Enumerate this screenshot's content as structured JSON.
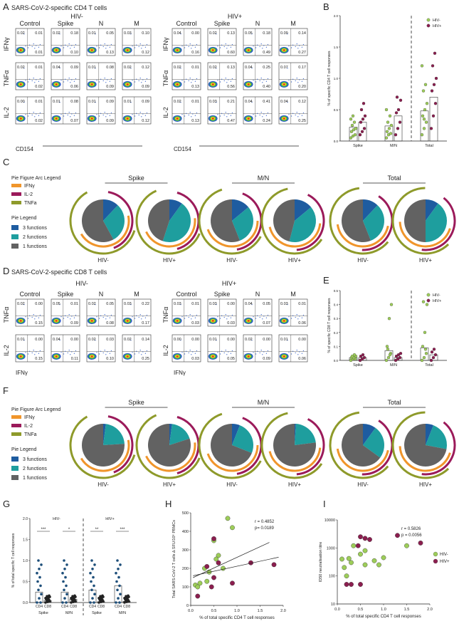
{
  "panel_letters": [
    "A",
    "B",
    "C",
    "D",
    "E",
    "F",
    "G",
    "H",
    "I"
  ],
  "sectionA": {
    "title": "SARS-CoV-2-specific CD4 T cells",
    "group_neg": "HIV-",
    "group_pos": "HIV+",
    "columns": [
      "Control",
      "Spike",
      "N",
      "M"
    ],
    "row_labels": [
      "IFNγ",
      "TNFα",
      "IL-2"
    ],
    "x_label": "CD154",
    "quadrants_neg": [
      [
        [
          "0.02",
          "0.01",
          "0.01"
        ],
        [
          "0.02",
          "0.18",
          "0.10"
        ],
        [
          "0.01",
          "0.05",
          "0.13"
        ],
        [
          "0.03",
          "0.10",
          "0.12"
        ]
      ],
      [
        [
          "0.02",
          "0.01",
          "0.02"
        ],
        [
          "0.04",
          "0.09",
          "0.06"
        ],
        [
          "0.01",
          "0.08",
          "0.09"
        ],
        [
          "0.02",
          "0.12",
          "0.09"
        ]
      ],
      [
        [
          "0.00",
          "0.01",
          "0.02"
        ],
        [
          "0.01",
          "0.08",
          "0.07"
        ],
        [
          "0.01",
          "0.09",
          "0.09"
        ],
        [
          "0.01",
          "0.09",
          "0.12"
        ]
      ]
    ],
    "quadrants_pos": [
      [
        [
          "0.04",
          "0.00",
          "0.16"
        ],
        [
          "0.02",
          "0.13",
          "0.60"
        ],
        [
          "0.05",
          "0.18",
          "0.49"
        ],
        [
          "0.09",
          "0.14",
          "0.27"
        ]
      ],
      [
        [
          "0.02",
          "0.01",
          "0.13"
        ],
        [
          "0.02",
          "0.13",
          "0.56"
        ],
        [
          "0.04",
          "0.25",
          "0.40"
        ],
        [
          "0.07",
          "0.17",
          "0.20"
        ]
      ],
      [
        [
          "0.02",
          "0.01",
          "0.13"
        ],
        [
          "0.03",
          "0.21",
          "0.47"
        ],
        [
          "0.04",
          "0.41",
          "0.24"
        ],
        [
          "0.04",
          "0.12",
          "0.25"
        ]
      ]
    ]
  },
  "sectionD": {
    "title": "SARS-CoV-2-specific CD8 T cells",
    "group_neg": "HIV-",
    "group_pos": "HIV+",
    "columns": [
      "Control",
      "Spike",
      "N",
      "M"
    ],
    "row_labels": [
      "TNFα",
      "IL-2"
    ],
    "x_label": "IFNγ",
    "quadrants_neg": [
      [
        [
          "0.02",
          "0.00",
          "0.15"
        ],
        [
          "0.05",
          "0.01",
          "0.09"
        ],
        [
          "0.02",
          "0.05",
          "0.08"
        ],
        [
          "0.03",
          "0.22",
          "0.17"
        ]
      ],
      [
        [
          "0.01",
          "0.00",
          "0.15"
        ],
        [
          "0.04",
          "0.00",
          "0.11"
        ],
        [
          "0.02",
          "0.03",
          "0.10"
        ],
        [
          "0.02",
          "0.14",
          "0.25"
        ]
      ]
    ],
    "quadrants_pos": [
      [
        [
          "0.03",
          "0.01",
          "0.03"
        ],
        [
          "0.03",
          "0.00",
          "0.03"
        ],
        [
          "0.04",
          "0.05",
          "0.07"
        ],
        [
          "0.03",
          "0.01",
          "0.06"
        ]
      ],
      [
        [
          "0.00",
          "0.00",
          "0.03"
        ],
        [
          "0.01",
          "0.00",
          "0.05"
        ],
        [
          "0.02",
          "0.00",
          "0.09"
        ],
        [
          "0.01",
          "0.00",
          "0.06"
        ]
      ]
    ]
  },
  "pies": {
    "arc_legend_title": "Pie Figure Arc Legend",
    "arc_legend_title_C": "Pie Figure Arc Legend",
    "arc_items": [
      {
        "label": "IFNγ",
        "color": "#F0952B"
      },
      {
        "label": "IL-2",
        "color": "#9B1A5A"
      },
      {
        "label": "TNFa",
        "color": "#8E9A2A"
      }
    ],
    "pie_legend_title": "Pie  Legend",
    "pie_items": [
      {
        "label": "3 functions",
        "color": "#1E5CA0"
      },
      {
        "label": "2 functions",
        "color": "#1E9E9E"
      },
      {
        "label": "1 functions",
        "color": "#626262"
      }
    ],
    "groups": [
      "Spike",
      "M/N",
      "Total"
    ],
    "pie_labels": [
      "HIV-",
      "HIV+",
      "HIV-",
      "HIV+",
      "HIV-",
      "HIV+"
    ],
    "C_fractions": [
      {
        "three": 0.12,
        "two": 0.3,
        "one": 0.58
      },
      {
        "three": 0.1,
        "two": 0.45,
        "one": 0.45
      },
      {
        "three": 0.14,
        "two": 0.3,
        "one": 0.56
      },
      {
        "three": 0.14,
        "two": 0.4,
        "one": 0.46
      },
      {
        "three": 0.12,
        "two": 0.32,
        "one": 0.56
      },
      {
        "three": 0.1,
        "two": 0.4,
        "one": 0.5
      }
    ],
    "F_fractions": [
      {
        "three": 0.02,
        "two": 0.22,
        "one": 0.76
      },
      {
        "three": 0.02,
        "two": 0.18,
        "one": 0.8
      },
      {
        "three": 0.06,
        "two": 0.25,
        "one": 0.69
      },
      {
        "three": 0.01,
        "two": 0.22,
        "one": 0.77
      },
      {
        "three": 0.1,
        "two": 0.25,
        "one": 0.65
      },
      {
        "three": 0.06,
        "two": 0.22,
        "one": 0.72
      }
    ]
  },
  "chart_data": [
    {
      "id": "B",
      "type": "bar",
      "ylabel": "% of specific CD4 T cell responses",
      "categories": [
        "Spike",
        "M/N",
        "Total"
      ],
      "ylim": [
        0,
        2.0
      ],
      "yticks": [
        "0.0",
        "0.5",
        "1.0",
        "1.5",
        "2.0"
      ],
      "series": [
        {
          "name": "HIV-",
          "color": "#9DCD59",
          "values": [
            0.22,
            0.24,
            0.48
          ],
          "points": [
            [
              0.05,
              0.08,
              0.1,
              0.15,
              0.18,
              0.2,
              0.25,
              0.3,
              0.35,
              0.4
            ],
            [
              0.05,
              0.1,
              0.12,
              0.15,
              0.2,
              0.25,
              0.3,
              0.4,
              0.5
            ],
            [
              0.1,
              0.2,
              0.3,
              0.4,
              0.5,
              0.6,
              0.8,
              0.9,
              1.2,
              0.35
            ]
          ]
        },
        {
          "name": "HIV+",
          "color": "#8B1E4F",
          "values": [
            0.3,
            0.4,
            0.7
          ],
          "points": [
            [
              0.1,
              0.15,
              0.2,
              0.3,
              0.35,
              0.4,
              0.5,
              0.6
            ],
            [
              0.1,
              0.2,
              0.3,
              0.45,
              0.5,
              0.65,
              0.7
            ],
            [
              0.2,
              0.4,
              0.6,
              0.8,
              0.9,
              1.0,
              1.2,
              1.4
            ]
          ]
        }
      ]
    },
    {
      "id": "E",
      "type": "bar",
      "ylabel": "% of specific CD8 T cell responses",
      "categories": [
        "Spike",
        "M/N",
        "Total"
      ],
      "ylim": [
        0,
        0.5
      ],
      "yticks": [
        "0.0",
        "0.1",
        "0.2",
        "0.3",
        "0.4",
        "0.5"
      ],
      "series": [
        {
          "name": "HIV-",
          "color": "#9DCD59",
          "values": [
            0.02,
            0.07,
            0.09
          ],
          "points": [
            [
              0.0,
              0.01,
              0.01,
              0.02,
              0.02,
              0.03,
              0.03,
              0.04
            ],
            [
              0.0,
              0.02,
              0.05,
              0.1,
              0.3,
              0.4,
              0.08,
              0.04
            ],
            [
              0.0,
              0.02,
              0.05,
              0.1,
              0.2,
              0.4,
              0.42,
              0.08
            ]
          ]
        },
        {
          "name": "HIV+",
          "color": "#8B1E4F",
          "values": [
            0.02,
            0.02,
            0.04
          ],
          "points": [
            [
              0.0,
              0.01,
              0.02,
              0.03,
              0.04
            ],
            [
              0.0,
              0.01,
              0.02,
              0.03,
              0.04,
              0.05
            ],
            [
              0.0,
              0.02,
              0.04,
              0.06,
              0.08
            ]
          ]
        }
      ]
    },
    {
      "id": "G",
      "type": "bar",
      "ylabel": "% of total specific T cell responses",
      "ylim": [
        0,
        2.0
      ],
      "yticks": [
        "0.0",
        "0.5",
        "1.0",
        "1.5",
        "2.0"
      ],
      "groups": [
        {
          "label": "HIV-",
          "subgroups": [
            {
              "name": "Spike",
              "bars": [
                {
                  "name": "CD4",
                  "value": 0.25
                },
                {
                  "name": "CD8",
                  "value": 0.05
                }
              ],
              "sig": "***"
            },
            {
              "name": "M/N",
              "bars": [
                {
                  "name": "CD4",
                  "value": 0.25
                },
                {
                  "name": "CD8",
                  "value": 0.08
                }
              ],
              "sig": "*"
            }
          ]
        },
        {
          "label": "HIV+",
          "subgroups": [
            {
              "name": "Spike",
              "bars": [
                {
                  "name": "CD4",
                  "value": 0.3
                },
                {
                  "name": "CD8",
                  "value": 0.02
                }
              ],
              "sig": "**"
            },
            {
              "name": "M/N",
              "bars": [
                {
                  "name": "CD4",
                  "value": 0.4
                },
                {
                  "name": "CD8",
                  "value": 0.03
                }
              ],
              "sig": "***"
            }
          ]
        }
      ]
    },
    {
      "id": "H",
      "type": "scatter",
      "xlabel": "% of total specific CD4 T cell responses",
      "ylabel": "Total SARS-CoV-2 T cells ∆ SFU/10⁶ PBMCs",
      "xlim": [
        0,
        2.0
      ],
      "ylim": [
        0,
        500
      ],
      "xticks": [
        "0.0",
        "0.5",
        "1.0",
        "1.5",
        "2.0"
      ],
      "yticks": [
        "0",
        "100",
        "200",
        "300",
        "400",
        "500"
      ],
      "stats": [
        "r =  0.4852",
        "p=  0.0189"
      ],
      "series": [
        {
          "name": "HIV-",
          "color": "#9DCD59",
          "points": [
            [
              0.1,
              110
            ],
            [
              0.15,
              100
            ],
            [
              0.2,
              120
            ],
            [
              0.3,
              200
            ],
            [
              0.4,
              180
            ],
            [
              0.5,
              350
            ],
            [
              0.6,
              270
            ],
            [
              0.7,
              200
            ],
            [
              0.8,
              470
            ],
            [
              0.9,
              420
            ],
            [
              0.35,
              130
            ],
            [
              0.55,
              250
            ]
          ]
        },
        {
          "name": "HIV+",
          "color": "#8B1E4F",
          "points": [
            [
              0.15,
              50
            ],
            [
              0.35,
              210
            ],
            [
              0.5,
              360
            ],
            [
              0.5,
              150
            ],
            [
              0.6,
              230
            ],
            [
              0.9,
              120
            ],
            [
              1.3,
              230
            ],
            [
              1.8,
              220
            ],
            [
              0.45,
              100
            ]
          ]
        }
      ]
    },
    {
      "id": "I",
      "type": "scatter",
      "xlabel": "% of total specific CD4 T cell responses",
      "ylabel": "ID50 neutralisation titre",
      "xlim": [
        0,
        2.0
      ],
      "yscale": "log",
      "ylim": [
        10,
        10000
      ],
      "xticks": [
        "0.0",
        "0.5",
        "1.0",
        "1.5",
        "2.0"
      ],
      "yticks": [
        "10",
        "100",
        "1000",
        "10000"
      ],
      "stats": [
        "r =  0.5826",
        "p =  0.0056"
      ],
      "series": [
        {
          "name": "HIV-",
          "color": "#9DCD59",
          "points": [
            [
              0.1,
              400
            ],
            [
              0.15,
              200
            ],
            [
              0.2,
              100
            ],
            [
              0.25,
              420
            ],
            [
              0.3,
              300
            ],
            [
              0.35,
              1200
            ],
            [
              0.5,
              600
            ],
            [
              0.6,
              800
            ],
            [
              0.6,
              250
            ],
            [
              0.8,
              350
            ],
            [
              0.9,
              250
            ],
            [
              1.0,
              450
            ],
            [
              1.5,
              1200
            ]
          ]
        },
        {
          "name": "HIV+",
          "color": "#8B1E4F",
          "points": [
            [
              0.2,
              50
            ],
            [
              0.3,
              50
            ],
            [
              0.45,
              1200
            ],
            [
              0.5,
              2500
            ],
            [
              0.5,
              50
            ],
            [
              0.6,
              2200
            ],
            [
              0.7,
              2000
            ],
            [
              1.3,
              2800
            ],
            [
              1.8,
              1500
            ]
          ]
        }
      ]
    }
  ]
}
